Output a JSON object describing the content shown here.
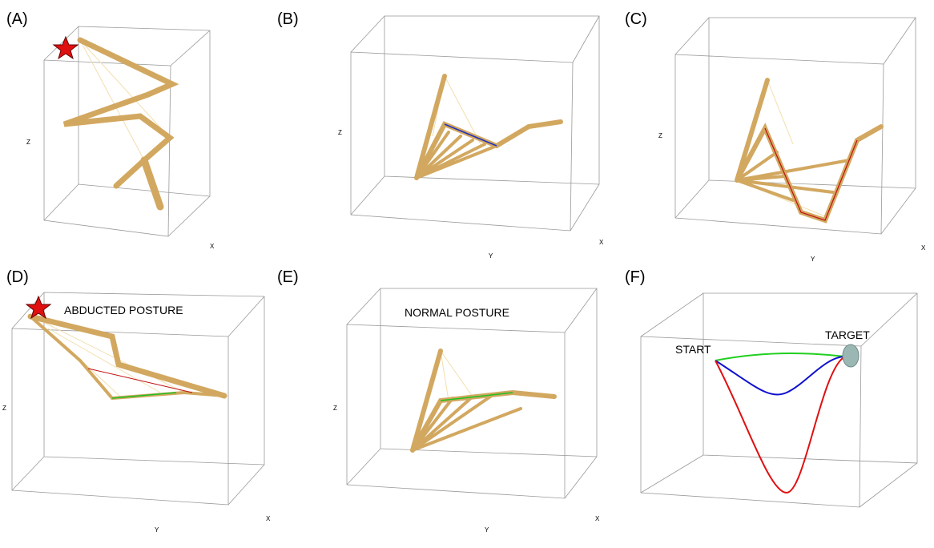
{
  "panels": [
    {
      "label": "(A)",
      "z_axis": "Z",
      "x_axis": "X"
    },
    {
      "label": "(B)",
      "z_axis": "Z",
      "y_axis": "Y",
      "x_axis": "X"
    },
    {
      "label": "(C)",
      "z_axis": "Z",
      "y_axis": "Y",
      "x_axis": "X"
    },
    {
      "label": "(D)",
      "z_axis": "Z",
      "y_axis": "Y",
      "x_axis": "X",
      "annotation": "ABDUCTED POSTURE"
    },
    {
      "label": "(E)",
      "z_axis": "Z",
      "y_axis": "Y",
      "x_axis": "X",
      "annotation": "NORMAL POSTURE"
    },
    {
      "label": "(F)",
      "start": "START",
      "target": "TARGET"
    }
  ]
}
